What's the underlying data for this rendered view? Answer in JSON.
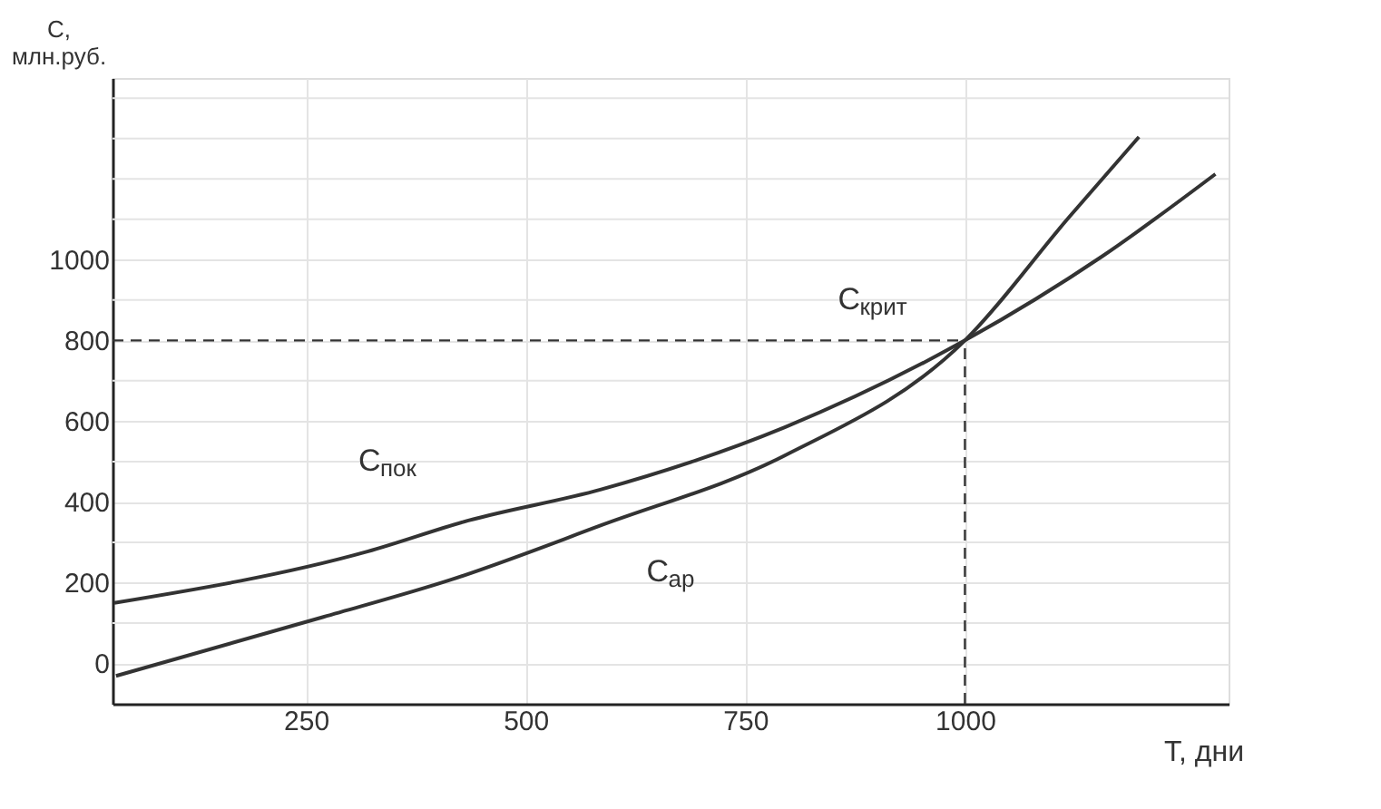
{
  "chart_data": {
    "type": "line",
    "xlabel": "T, дни",
    "ylabel": "C,\nмлн.руб.",
    "xlim": [
      30,
      1300
    ],
    "ylim": [
      -100,
      1450
    ],
    "xticks": [
      250,
      500,
      750,
      1000
    ],
    "yticks": [
      0,
      {
        "value": 100,
        "label": null
      },
      200,
      {
        "value": 300,
        "label": null
      },
      400,
      {
        "value": 500,
        "label": null
      },
      600,
      {
        "value": 700,
        "label": null
      },
      800,
      {
        "value": 900,
        "label": null
      },
      1000,
      {
        "value": 1100,
        "label": null
      },
      {
        "value": 1200,
        "label": null
      },
      {
        "value": 1300,
        "label": null
      },
      {
        "value": 1400,
        "label": null
      }
    ],
    "grid": true,
    "series": [
      {
        "color": "#333333",
        "x": [
          32,
          320,
          435,
          586,
          795,
          1000,
          1156,
          1285
        ],
        "values": [
          150,
          277,
          354,
          431,
          585,
          800,
          1008,
          1212
        ]
      },
      {
        "color": "#333333",
        "x": [
          34,
          270,
          416,
          586,
          795,
          1000,
          1118,
          1198
        ],
        "values": [
          -31,
          115,
          208,
          342,
          515,
          800,
          1104,
          1304
        ]
      }
    ],
    "ref_lines": [
      {
        "axis": "y",
        "value": 800,
        "line_style": "dashed",
        "color": "#333333"
      },
      {
        "axis": "x",
        "value": 1000,
        "line_style": "dashed",
        "color": "#333333"
      }
    ],
    "annotations": [
      {
        "text": "C$_{пок}$",
        "x": 444,
        "y": 373
      },
      {
        "text": "C$_{ар}$",
        "x": 586,
        "y": 342
      },
      {
        "text": "C$_{крит}$",
        "x": 1000,
        "y": 800
      }
    ]
  }
}
